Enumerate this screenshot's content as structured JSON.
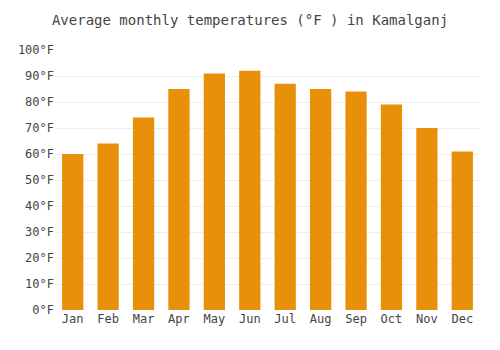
{
  "chart_data": {
    "type": "bar",
    "title": "Average monthly temperatures (°F ) in Kamalganj",
    "categories": [
      "Jan",
      "Feb",
      "Mar",
      "Apr",
      "May",
      "Jun",
      "Jul",
      "Aug",
      "Sep",
      "Oct",
      "Nov",
      "Dec"
    ],
    "values": [
      60,
      64,
      74,
      85,
      91,
      92,
      87,
      85,
      84,
      79,
      70,
      61
    ],
    "color": "#E8900A",
    "ylim": [
      0,
      100
    ],
    "yticks": [
      {
        "value": 0,
        "label": "0°F"
      },
      {
        "value": 10,
        "label": "10°F"
      },
      {
        "value": 20,
        "label": "20°F"
      },
      {
        "value": 30,
        "label": "30°F"
      },
      {
        "value": 40,
        "label": "40°F"
      },
      {
        "value": 50,
        "label": "50°F"
      },
      {
        "value": 60,
        "label": "60°F"
      },
      {
        "value": 70,
        "label": "70°F"
      },
      {
        "value": 80,
        "label": "80°F"
      },
      {
        "value": 90,
        "label": "90°F"
      },
      {
        "value": 100,
        "label": "100°F"
      }
    ],
    "grid": true
  }
}
